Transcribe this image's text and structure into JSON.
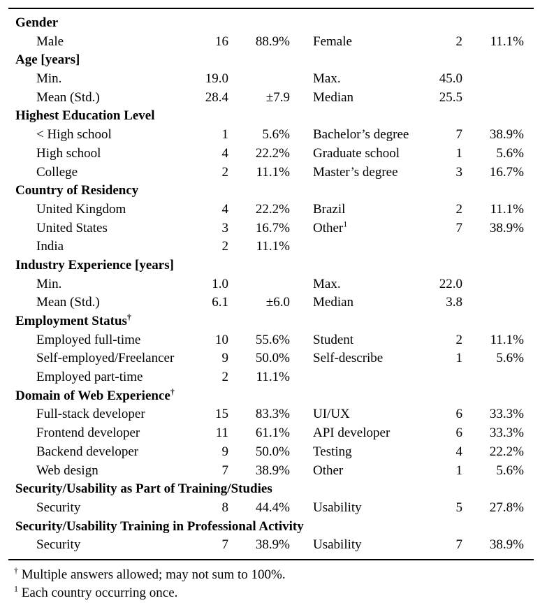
{
  "sections": [
    {
      "title": "Gender",
      "sup": "",
      "rows": [
        [
          "Male",
          "16",
          "88.9%",
          "Female",
          "2",
          "11.1%"
        ]
      ]
    },
    {
      "title": "Age [years]",
      "sup": "",
      "rows": [
        [
          "Min.",
          "19.0",
          "",
          "Max.",
          "45.0",
          ""
        ],
        [
          "Mean (Std.)",
          "28.4",
          "±7.9",
          "Median",
          "25.5",
          ""
        ]
      ]
    },
    {
      "title": "Highest Education Level",
      "sup": "",
      "rows": [
        [
          "< High school",
          "1",
          "5.6%",
          "Bachelor’s degree",
          "7",
          "38.9%"
        ],
        [
          "High school",
          "4",
          "22.2%",
          "Graduate school",
          "1",
          "5.6%"
        ],
        [
          "College",
          "2",
          "11.1%",
          "Master’s degree",
          "3",
          "16.7%"
        ]
      ]
    },
    {
      "title": "Country of Residency",
      "sup": "",
      "rows": [
        [
          "United Kingdom",
          "4",
          "22.2%",
          "Brazil",
          "2",
          "11.1%"
        ],
        [
          "United States",
          "3",
          "16.7%",
          "Other",
          "7",
          "38.9%"
        ],
        [
          "India",
          "2",
          "11.1%",
          "",
          "",
          ""
        ]
      ]
    },
    {
      "title": "Industry Experience [years]",
      "sup": "",
      "rows": [
        [
          "Min.",
          "1.0",
          "",
          "Max.",
          "22.0",
          ""
        ],
        [
          "Mean (Std.)",
          "6.1",
          "±6.0",
          "Median",
          "3.8",
          ""
        ]
      ]
    },
    {
      "title": "Employment Status",
      "sup": "†",
      "rows": [
        [
          "Employed full-time",
          "10",
          "55.6%",
          "Student",
          "2",
          "11.1%"
        ],
        [
          "Self-employed/Freelancer",
          "9",
          "50.0%",
          "Self-describe",
          "1",
          "5.6%"
        ],
        [
          "Employed part-time",
          "2",
          "11.1%",
          "",
          "",
          ""
        ]
      ]
    },
    {
      "title": "Domain of Web Experience",
      "sup": "†",
      "rows": [
        [
          "Full-stack developer",
          "15",
          "83.3%",
          "UI/UX",
          "6",
          "33.3%"
        ],
        [
          "Frontend developer",
          "11",
          "61.1%",
          "API developer",
          "6",
          "33.3%"
        ],
        [
          "Backend developer",
          "9",
          "50.0%",
          "Testing",
          "4",
          "22.2%"
        ],
        [
          "Web design",
          "7",
          "38.9%",
          "Other",
          "1",
          "5.6%"
        ]
      ]
    },
    {
      "title": "Security/Usability as Part of Training/Studies",
      "sup": "",
      "rows": [
        [
          "Security",
          "8",
          "44.4%",
          "Usability",
          "5",
          "27.8%"
        ]
      ]
    },
    {
      "title": "Security/Usability Training in Professional Activity",
      "sup": "",
      "rows": [
        [
          "Security",
          "7",
          "38.9%",
          "Usability",
          "7",
          "38.9%"
        ]
      ]
    }
  ],
  "other_country_sup": "1",
  "footnotes": {
    "dagger_mark": "†",
    "dagger_text": "Multiple answers allowed; may not sum to 100%.",
    "one_mark": "1",
    "one_text": "Each country occurring once."
  }
}
